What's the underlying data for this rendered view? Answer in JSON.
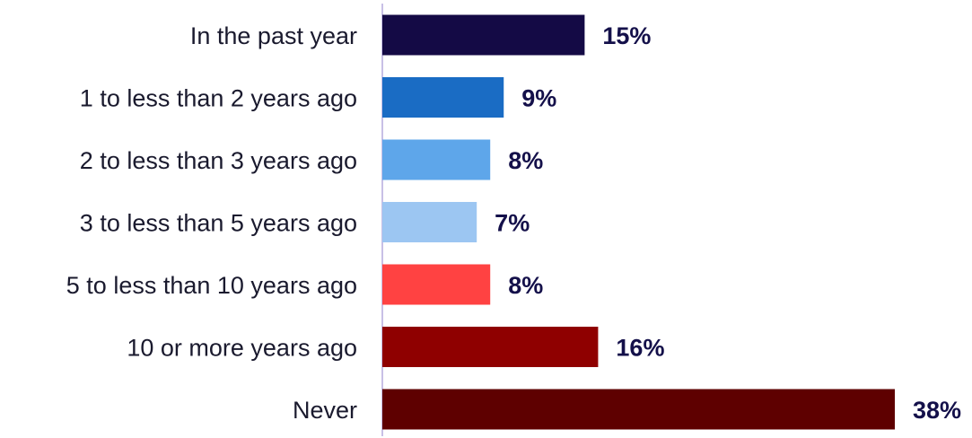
{
  "chart_data": {
    "type": "bar",
    "orientation": "horizontal",
    "title": "",
    "xlabel": "",
    "ylabel": "",
    "categories": [
      "In the past year",
      "1 to less than 2 years ago",
      "2 to less than 3 years ago",
      "3 to less than 5 years ago",
      "5 to less than 10 years ago",
      "10 or more years ago",
      "Never"
    ],
    "values": [
      15,
      9,
      8,
      7,
      8,
      16,
      38
    ],
    "value_labels": [
      "15%",
      "9%",
      "8%",
      "7%",
      "8%",
      "16%",
      "38%"
    ],
    "colors": [
      "#140a45",
      "#1a6cc4",
      "#5ea6ea",
      "#9cc6f2",
      "#ff4242",
      "#8f0000",
      "#5e0000"
    ],
    "axis_color": "#c8c0e6",
    "xlim": [
      0,
      38
    ],
    "grid": false,
    "legend": "none"
  }
}
